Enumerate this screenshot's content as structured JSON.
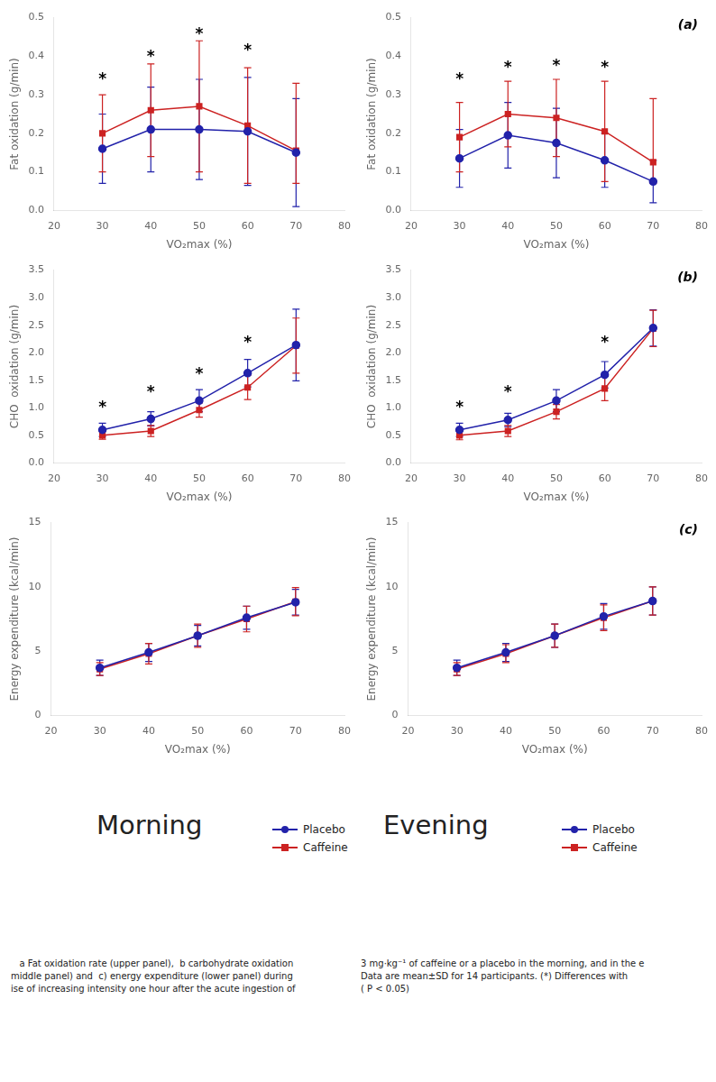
{
  "chart_data": [
    {
      "type": "line",
      "x": [
        30,
        40,
        50,
        60,
        70
      ],
      "xlabel": "VO₂max (%)",
      "ylabel": "Fat oxidation (g/min)",
      "xlim": [
        20,
        80
      ],
      "xticks": [
        20,
        30,
        40,
        50,
        60,
        70,
        80
      ],
      "ylim": [
        0.0,
        0.5
      ],
      "yticks": [
        {
          "value": 0.0,
          "label": "0.0"
        },
        0.1,
        0.2,
        0.3,
        0.4,
        0.5
      ],
      "grid": false,
      "series": [
        {
          "name": "Placebo",
          "color": "#2222aa",
          "marker": "circle",
          "values": [
            0.16,
            0.21,
            0.21,
            0.205,
            0.15
          ],
          "error": [
            0.09,
            0.11,
            0.13,
            0.14,
            0.14
          ]
        },
        {
          "name": "Caffeine",
          "color": "#cc2222",
          "marker": "square",
          "values": [
            0.2,
            0.26,
            0.27,
            0.22,
            0.155
          ],
          "error_plus": [
            0.1,
            0.12,
            0.17,
            0.15,
            0.175
          ],
          "error_minus": [
            0.1,
            0.12,
            0.17,
            0.15,
            0.085
          ]
        }
      ],
      "annotations": [
        {
          "x": 30,
          "y": 0.345,
          "text": "*"
        },
        {
          "x": 40,
          "y": 0.405,
          "text": "*"
        },
        {
          "x": 50,
          "y": 0.462,
          "text": "*"
        },
        {
          "x": 60,
          "y": 0.42,
          "text": "*"
        }
      ]
    },
    {
      "type": "line",
      "x": [
        30,
        40,
        50,
        60,
        70
      ],
      "xlabel": "VO₂max (%)",
      "ylabel": "Fat oxidation (g/min)",
      "xlim": [
        20,
        80
      ],
      "xticks": [
        20,
        30,
        40,
        50,
        60,
        70,
        80
      ],
      "ylim": [
        0.0,
        0.5
      ],
      "yticks": [
        {
          "value": 0.0,
          "label": "0.0"
        },
        0.1,
        0.2,
        0.3,
        0.4,
        0.5
      ],
      "grid": false,
      "panel_label": "(a)",
      "series": [
        {
          "name": "Placebo",
          "color": "#2222aa",
          "marker": "circle",
          "values": [
            0.135,
            0.195,
            0.175,
            0.13,
            0.075
          ],
          "error": [
            0.075,
            0.085,
            0.09,
            0.07,
            0.055
          ]
        },
        {
          "name": "Caffeine",
          "color": "#cc2222",
          "marker": "square",
          "values": [
            0.19,
            0.25,
            0.24,
            0.205,
            0.125
          ],
          "error_plus": [
            0.09,
            0.085,
            0.1,
            0.13,
            0.165
          ],
          "error_minus": [
            0.09,
            0.085,
            0.1,
            0.13,
            0.055
          ]
        }
      ],
      "annotations": [
        {
          "x": 30,
          "y": 0.345,
          "text": "*"
        },
        {
          "x": 40,
          "y": 0.375,
          "text": "*"
        },
        {
          "x": 50,
          "y": 0.38,
          "text": "*"
        },
        {
          "x": 60,
          "y": 0.375,
          "text": "*"
        }
      ]
    },
    {
      "type": "line",
      "x": [
        30,
        40,
        50,
        60,
        70
      ],
      "xlabel": "VO₂max (%)",
      "ylabel": "CHO  oxidation (g/min)",
      "xlim": [
        20,
        80
      ],
      "xticks": [
        20,
        30,
        40,
        50,
        60,
        70,
        80
      ],
      "ylim": [
        0.0,
        3.5
      ],
      "yticks": [
        {
          "value": 0.0,
          "label": "0.0"
        },
        0.5,
        {
          "value": 1.0,
          "label": "1.0"
        },
        1.5,
        {
          "value": 2.0,
          "label": "2.0"
        },
        2.5,
        {
          "value": 3.0,
          "label": "3.0"
        },
        3.5
      ],
      "grid": false,
      "series": [
        {
          "name": "Placebo",
          "color": "#2222aa",
          "marker": "circle",
          "values": [
            0.6,
            0.8,
            1.13,
            1.63,
            2.14
          ],
          "error": [
            0.12,
            0.13,
            0.2,
            0.25,
            0.65
          ]
        },
        {
          "name": "Caffeine",
          "color": "#cc2222",
          "marker": "square",
          "values": [
            0.5,
            0.58,
            0.96,
            1.37,
            2.13
          ],
          "error_plus": [
            0.07,
            0.1,
            0.13,
            0.22,
            0.5
          ],
          "error_minus": [
            0.07,
            0.1,
            0.13,
            0.22,
            0.5
          ]
        }
      ],
      "annotations": [
        {
          "x": 30,
          "y": 1.05,
          "text": "*"
        },
        {
          "x": 40,
          "y": 1.32,
          "text": "*"
        },
        {
          "x": 50,
          "y": 1.65,
          "text": "*"
        },
        {
          "x": 60,
          "y": 2.22,
          "text": "*"
        }
      ]
    },
    {
      "type": "line",
      "x": [
        30,
        40,
        50,
        60,
        70
      ],
      "xlabel": "VO₂max (%)",
      "ylabel": "CHO  oxidation (g/min)",
      "xlim": [
        20,
        80
      ],
      "xticks": [
        20,
        30,
        40,
        50,
        60,
        70,
        80
      ],
      "ylim": [
        0.0,
        3.5
      ],
      "yticks": [
        {
          "value": 0.0,
          "label": "0.0"
        },
        0.5,
        {
          "value": 1.0,
          "label": "1.0"
        },
        1.5,
        {
          "value": 2.0,
          "label": "2.0"
        },
        2.5,
        {
          "value": 3.0,
          "label": "3.0"
        },
        3.5
      ],
      "grid": false,
      "panel_label": "(b)",
      "series": [
        {
          "name": "Placebo",
          "color": "#2222aa",
          "marker": "circle",
          "values": [
            0.6,
            0.78,
            1.13,
            1.6,
            2.45
          ],
          "error": [
            0.12,
            0.12,
            0.2,
            0.24,
            0.33
          ]
        },
        {
          "name": "Caffeine",
          "color": "#cc2222",
          "marker": "square",
          "values": [
            0.5,
            0.58,
            0.93,
            1.35,
            2.44
          ],
          "error_plus": [
            0.08,
            0.1,
            0.13,
            0.22,
            0.33
          ],
          "error_minus": [
            0.08,
            0.1,
            0.13,
            0.22,
            0.33
          ]
        }
      ],
      "annotations": [
        {
          "x": 30,
          "y": 1.05,
          "text": "*"
        },
        {
          "x": 40,
          "y": 1.32,
          "text": "*"
        },
        {
          "x": 60,
          "y": 2.22,
          "text": "*"
        }
      ]
    },
    {
      "type": "line",
      "x": [
        30,
        40,
        50,
        60,
        70
      ],
      "xlabel": "VO₂max (%)",
      "ylabel": "Energy expenditure (kcal/min)",
      "xlim": [
        20,
        80
      ],
      "xticks": [
        20,
        30,
        40,
        50,
        60,
        70,
        80
      ],
      "ylim": [
        0,
        15
      ],
      "yticks": [
        0,
        5,
        10,
        15
      ],
      "grid": false,
      "legend": "bottom",
      "series": [
        {
          "name": "Placebo",
          "color": "#2222aa",
          "marker": "circle",
          "values": [
            3.7,
            4.9,
            6.2,
            7.6,
            8.8
          ],
          "error": [
            0.6,
            0.7,
            0.8,
            0.9,
            1.0
          ]
        },
        {
          "name": "Caffeine",
          "color": "#cc2222",
          "marker": "square",
          "values": [
            3.6,
            4.8,
            6.2,
            7.5,
            8.85
          ],
          "error_plus": [
            0.5,
            0.8,
            0.9,
            1.0,
            1.1
          ],
          "error_minus": [
            0.5,
            0.8,
            0.9,
            1.0,
            1.1
          ]
        }
      ]
    },
    {
      "type": "line",
      "x": [
        30,
        40,
        50,
        60,
        70
      ],
      "xlabel": "VO₂max (%)",
      "ylabel": "Energy expenditure (kcal/min)",
      "xlim": [
        20,
        80
      ],
      "xticks": [
        20,
        30,
        40,
        50,
        60,
        70,
        80
      ],
      "ylim": [
        0,
        15
      ],
      "yticks": [
        0,
        5,
        10,
        15
      ],
      "grid": false,
      "legend": "bottom",
      "panel_label": "(c)",
      "series": [
        {
          "name": "Placebo",
          "color": "#2222aa",
          "marker": "circle",
          "values": [
            3.7,
            4.9,
            6.2,
            7.7,
            8.9
          ],
          "error": [
            0.6,
            0.7,
            0.9,
            1.0,
            1.1
          ]
        },
        {
          "name": "Caffeine",
          "color": "#cc2222",
          "marker": "square",
          "values": [
            3.6,
            4.8,
            6.2,
            7.6,
            8.9
          ],
          "error_plus": [
            0.5,
            0.7,
            0.9,
            1.0,
            1.1
          ],
          "error_minus": [
            0.5,
            0.7,
            0.9,
            1.0,
            1.1
          ]
        }
      ]
    }
  ],
  "titles": [
    "Morning",
    "Evening"
  ],
  "caption": [
    [
      "   a Fat oxidation rate (upper panel),  b carbohydrate oxidation",
      "middle panel) and  c) energy expenditure (lower panel) during",
      "ise of increasing intensity one hour after the acute ingestion of"
    ],
    [
      "3 mg·kg⁻¹ of caffeine or a placebo in the morning, and in the e",
      "Data are mean±SD for 14 participants. (*) Differences with",
      "( P < 0.05)"
    ]
  ]
}
